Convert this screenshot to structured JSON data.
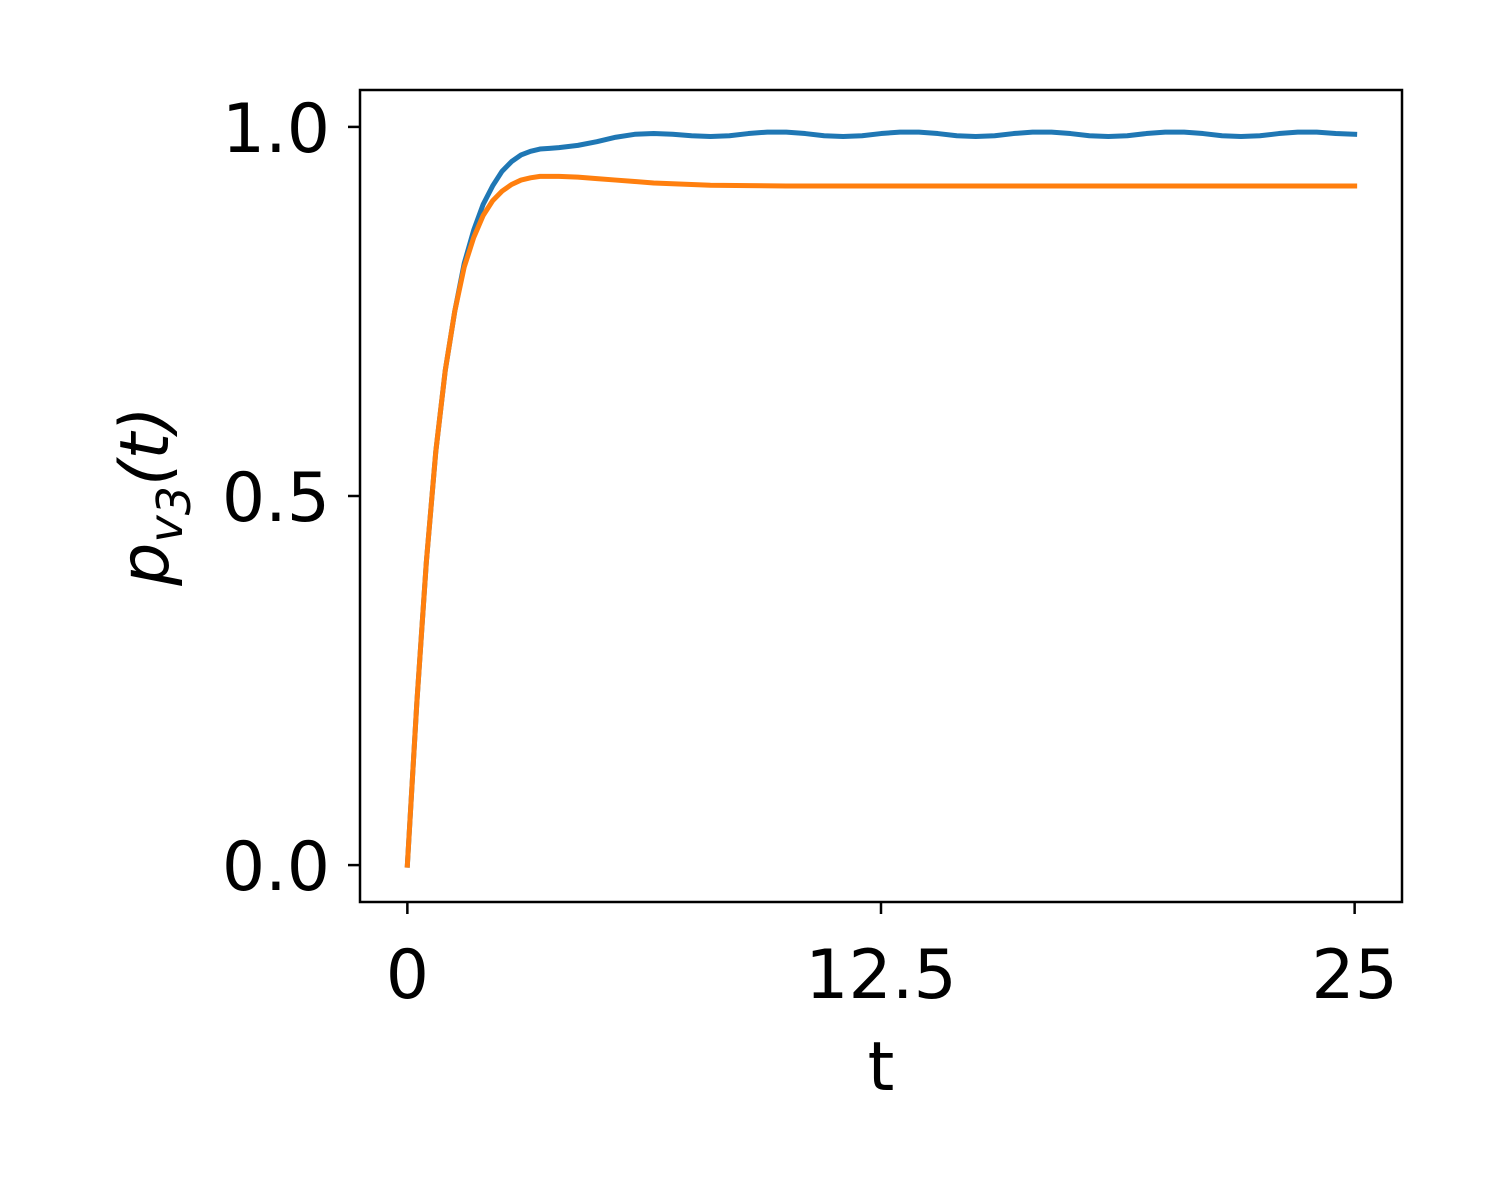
{
  "chart_data": {
    "type": "line",
    "xlabel": "t",
    "ylabel": {
      "symbol": "p",
      "subscript_base": "v",
      "subscript_index": "3",
      "argument": "(t)"
    },
    "xlim": [
      -1.25,
      26.25
    ],
    "ylim": [
      -0.05,
      1.05
    ],
    "xticks": [
      0,
      12.5,
      25
    ],
    "xtick_labels": [
      "0",
      "12.5",
      "25"
    ],
    "yticks": [
      0.0,
      0.5,
      1.0
    ],
    "ytick_labels": [
      "0.0",
      "0.5",
      "1.0"
    ],
    "grid": false,
    "legend": "none",
    "series": [
      {
        "color": "#1f77b4",
        "x": [
          0,
          0.25,
          0.5,
          0.75,
          1,
          1.25,
          1.5,
          1.75,
          2,
          2.25,
          2.5,
          2.75,
          3,
          3.25,
          3.5,
          3.75,
          4,
          4.5,
          5,
          5.5,
          6,
          6.5,
          7,
          7.5,
          8,
          8.5,
          9,
          9.5,
          10,
          10.5,
          11,
          11.5,
          12,
          12.5,
          13,
          13.5,
          14,
          14.5,
          15,
          15.5,
          16,
          16.5,
          17,
          17.5,
          18,
          18.5,
          19,
          19.5,
          20,
          20.5,
          21,
          21.5,
          22,
          22.5,
          23,
          23.5,
          24,
          24.5,
          25
        ],
        "y": [
          0.0,
          0.22,
          0.41,
          0.56,
          0.67,
          0.75,
          0.815,
          0.86,
          0.895,
          0.92,
          0.94,
          0.953,
          0.962,
          0.967,
          0.97,
          0.971,
          0.972,
          0.975,
          0.98,
          0.986,
          0.99,
          0.991,
          0.99,
          0.988,
          0.987,
          0.988,
          0.991,
          0.993,
          0.993,
          0.991,
          0.988,
          0.987,
          0.988,
          0.991,
          0.993,
          0.993,
          0.991,
          0.988,
          0.987,
          0.988,
          0.991,
          0.993,
          0.993,
          0.991,
          0.988,
          0.987,
          0.988,
          0.991,
          0.993,
          0.993,
          0.991,
          0.988,
          0.987,
          0.988,
          0.991,
          0.993,
          0.993,
          0.991,
          0.99
        ]
      },
      {
        "color": "#ff7f0e",
        "x": [
          0,
          0.25,
          0.5,
          0.75,
          1,
          1.25,
          1.5,
          1.75,
          2,
          2.25,
          2.5,
          2.75,
          3,
          3.25,
          3.5,
          3.75,
          4,
          4.5,
          5,
          5.5,
          6,
          6.5,
          7,
          7.5,
          8,
          9,
          10,
          11,
          12,
          13,
          14,
          16,
          18,
          20,
          22,
          25
        ],
        "y": [
          0.0,
          0.22,
          0.41,
          0.56,
          0.67,
          0.75,
          0.81,
          0.85,
          0.88,
          0.9,
          0.913,
          0.922,
          0.928,
          0.931,
          0.933,
          0.933,
          0.933,
          0.932,
          0.93,
          0.928,
          0.926,
          0.924,
          0.923,
          0.922,
          0.921,
          0.9205,
          0.92,
          0.92,
          0.92,
          0.92,
          0.92,
          0.92,
          0.92,
          0.92,
          0.92,
          0.92
        ]
      }
    ]
  }
}
